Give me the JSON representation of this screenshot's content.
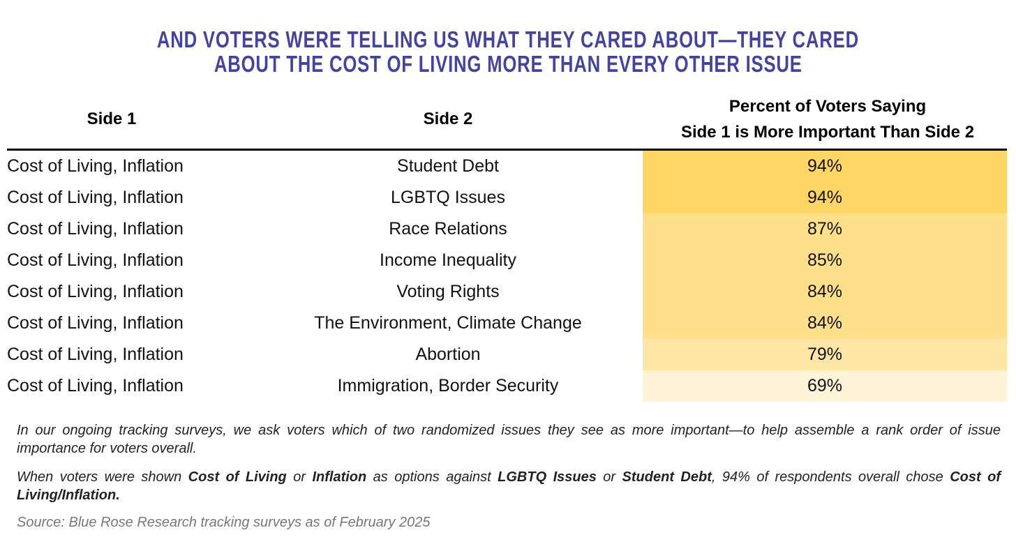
{
  "title": {
    "line1": "AND VOTERS WERE TELLING US WHAT THEY CARED ABOUT—THEY CARED",
    "line2": "ABOUT THE COST OF LIVING MORE THAN EVERY OTHER ISSUE"
  },
  "chart_data": {
    "type": "table",
    "columns": [
      "Side 1",
      "Side 2",
      "Percent of Voters Saying",
      "Side 1 is More Important Than Side 2"
    ],
    "header": {
      "side1": "Side 1",
      "side2": "Side 2",
      "pct_line1": "Percent of Voters Saying",
      "pct_line2": "Side 1 is More Important Than Side 2"
    },
    "rows": [
      {
        "side1": "Cost of Living, Inflation",
        "side2": "Student Debt",
        "pct": "94%",
        "value": 94,
        "color": "#fed666"
      },
      {
        "side1": "Cost of Living, Inflation",
        "side2": "LGBTQ Issues",
        "pct": "94%",
        "value": 94,
        "color": "#fed666"
      },
      {
        "side1": "Cost of Living, Inflation",
        "side2": "Race Relations",
        "pct": "87%",
        "value": 87,
        "color": "#fedf8a"
      },
      {
        "side1": "Cost of Living, Inflation",
        "side2": "Income Inequality",
        "pct": "85%",
        "value": 85,
        "color": "#fedf8a"
      },
      {
        "side1": "Cost of Living, Inflation",
        "side2": "Voting Rights",
        "pct": "84%",
        "value": 84,
        "color": "#fedf8a"
      },
      {
        "side1": "Cost of Living, Inflation",
        "side2": "The Environment, Climate Change",
        "pct": "84%",
        "value": 84,
        "color": "#fedf8a"
      },
      {
        "side1": "Cost of Living, Inflation",
        "side2": "Abortion",
        "pct": "79%",
        "value": 79,
        "color": "#fee7a6"
      },
      {
        "side1": "Cost of Living, Inflation",
        "side2": "Immigration, Border Security",
        "pct": "69%",
        "value": 69,
        "color": "#fff4d8"
      }
    ]
  },
  "notes": {
    "p1": "In our ongoing tracking surveys, we ask voters which of two randomized issues they see as more important—to help assemble a rank order of issue importance for voters overall.",
    "p2": [
      {
        "t": "When voters were shown ",
        "b": false
      },
      {
        "t": "Cost of Living",
        "b": true
      },
      {
        "t": " or ",
        "b": false
      },
      {
        "t": "Inflation",
        "b": true
      },
      {
        "t": " as options against ",
        "b": false
      },
      {
        "t": "LGBTQ Issues",
        "b": true
      },
      {
        "t": " or ",
        "b": false
      },
      {
        "t": "Student Debt",
        "b": true
      },
      {
        "t": ", 94% of respondents overall chose ",
        "b": false
      },
      {
        "t": "Cost of Living/Inflation.",
        "b": true
      }
    ],
    "source": "Source: Blue Rose Research tracking surveys as of February 2025"
  }
}
